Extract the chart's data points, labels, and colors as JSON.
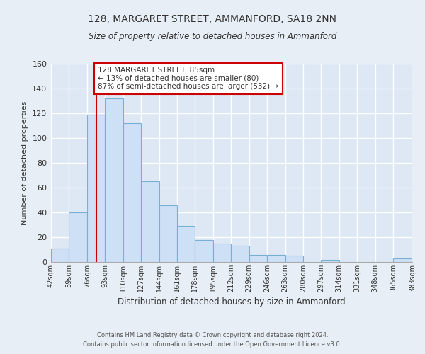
{
  "title": "128, MARGARET STREET, AMMANFORD, SA18 2NN",
  "subtitle": "Size of property relative to detached houses in Ammanford",
  "xlabel": "Distribution of detached houses by size in Ammanford",
  "ylabel": "Number of detached properties",
  "bar_color": "#cde0f5",
  "bar_edge_color": "#7aafd4",
  "background_color": "#e8eef5",
  "axes_bg_color": "#dde8f4",
  "grid_color": "#ffffff",
  "vline_x": 85,
  "vline_color": "#cc0000",
  "bin_edges": [
    42,
    59,
    76,
    93,
    110,
    127,
    144,
    161,
    178,
    195,
    212,
    229,
    246,
    263,
    280,
    297,
    314,
    331,
    348,
    365,
    383
  ],
  "bin_labels": [
    "42sqm",
    "59sqm",
    "76sqm",
    "93sqm",
    "110sqm",
    "127sqm",
    "144sqm",
    "161sqm",
    "178sqm",
    "195sqm",
    "212sqm",
    "229sqm",
    "246sqm",
    "263sqm",
    "280sqm",
    "297sqm",
    "314sqm",
    "331sqm",
    "348sqm",
    "365sqm",
    "383sqm"
  ],
  "counts": [
    11,
    40,
    119,
    132,
    112,
    65,
    46,
    29,
    18,
    15,
    13,
    6,
    6,
    5,
    0,
    2,
    0,
    0,
    0,
    3
  ],
  "ylim": [
    0,
    160
  ],
  "yticks": [
    0,
    20,
    40,
    60,
    80,
    100,
    120,
    140,
    160
  ],
  "annotation_title": "128 MARGARET STREET: 85sqm",
  "annotation_line1": "← 13% of detached houses are smaller (80)",
  "annotation_line2": "87% of semi-detached houses are larger (532) →",
  "annotation_box_color": "#ffffff",
  "annotation_box_edge": "#cc0000",
  "footer_line1": "Contains HM Land Registry data © Crown copyright and database right 2024.",
  "footer_line2": "Contains public sector information licensed under the Open Government Licence v3.0."
}
